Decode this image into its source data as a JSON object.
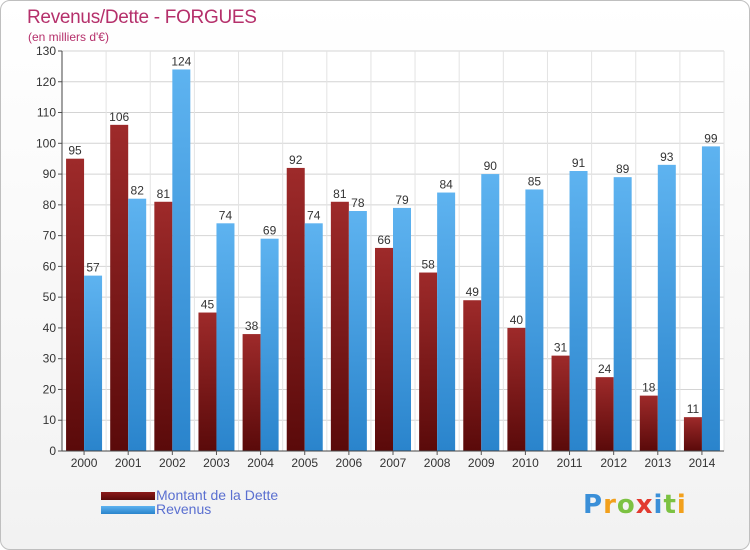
{
  "chart_data": {
    "type": "bar",
    "title": "Revenus/Dette - FORGUES",
    "subtitle": "(en milliers d'€)",
    "categories": [
      "2000",
      "2001",
      "2002",
      "2003",
      "2004",
      "2005",
      "2006",
      "2007",
      "2008",
      "2009",
      "2010",
      "2011",
      "2012",
      "2013",
      "2014"
    ],
    "series": [
      {
        "name": "Montant de la Dette",
        "values": [
          95,
          106,
          81,
          45,
          38,
          92,
          81,
          66,
          58,
          49,
          40,
          31,
          24,
          18,
          11
        ],
        "color": "#8b1a1a"
      },
      {
        "name": "Revenus",
        "values": [
          57,
          82,
          124,
          74,
          69,
          74,
          78,
          79,
          84,
          90,
          85,
          91,
          89,
          93,
          99
        ],
        "color": "#3b9ae1"
      }
    ],
    "ylim": [
      0,
      130
    ],
    "yticks": [
      0,
      10,
      20,
      30,
      40,
      50,
      60,
      70,
      80,
      90,
      100,
      110,
      120,
      130
    ],
    "grid": true,
    "legend_position": "bottom-left"
  },
  "logo_text": "Proxiti"
}
